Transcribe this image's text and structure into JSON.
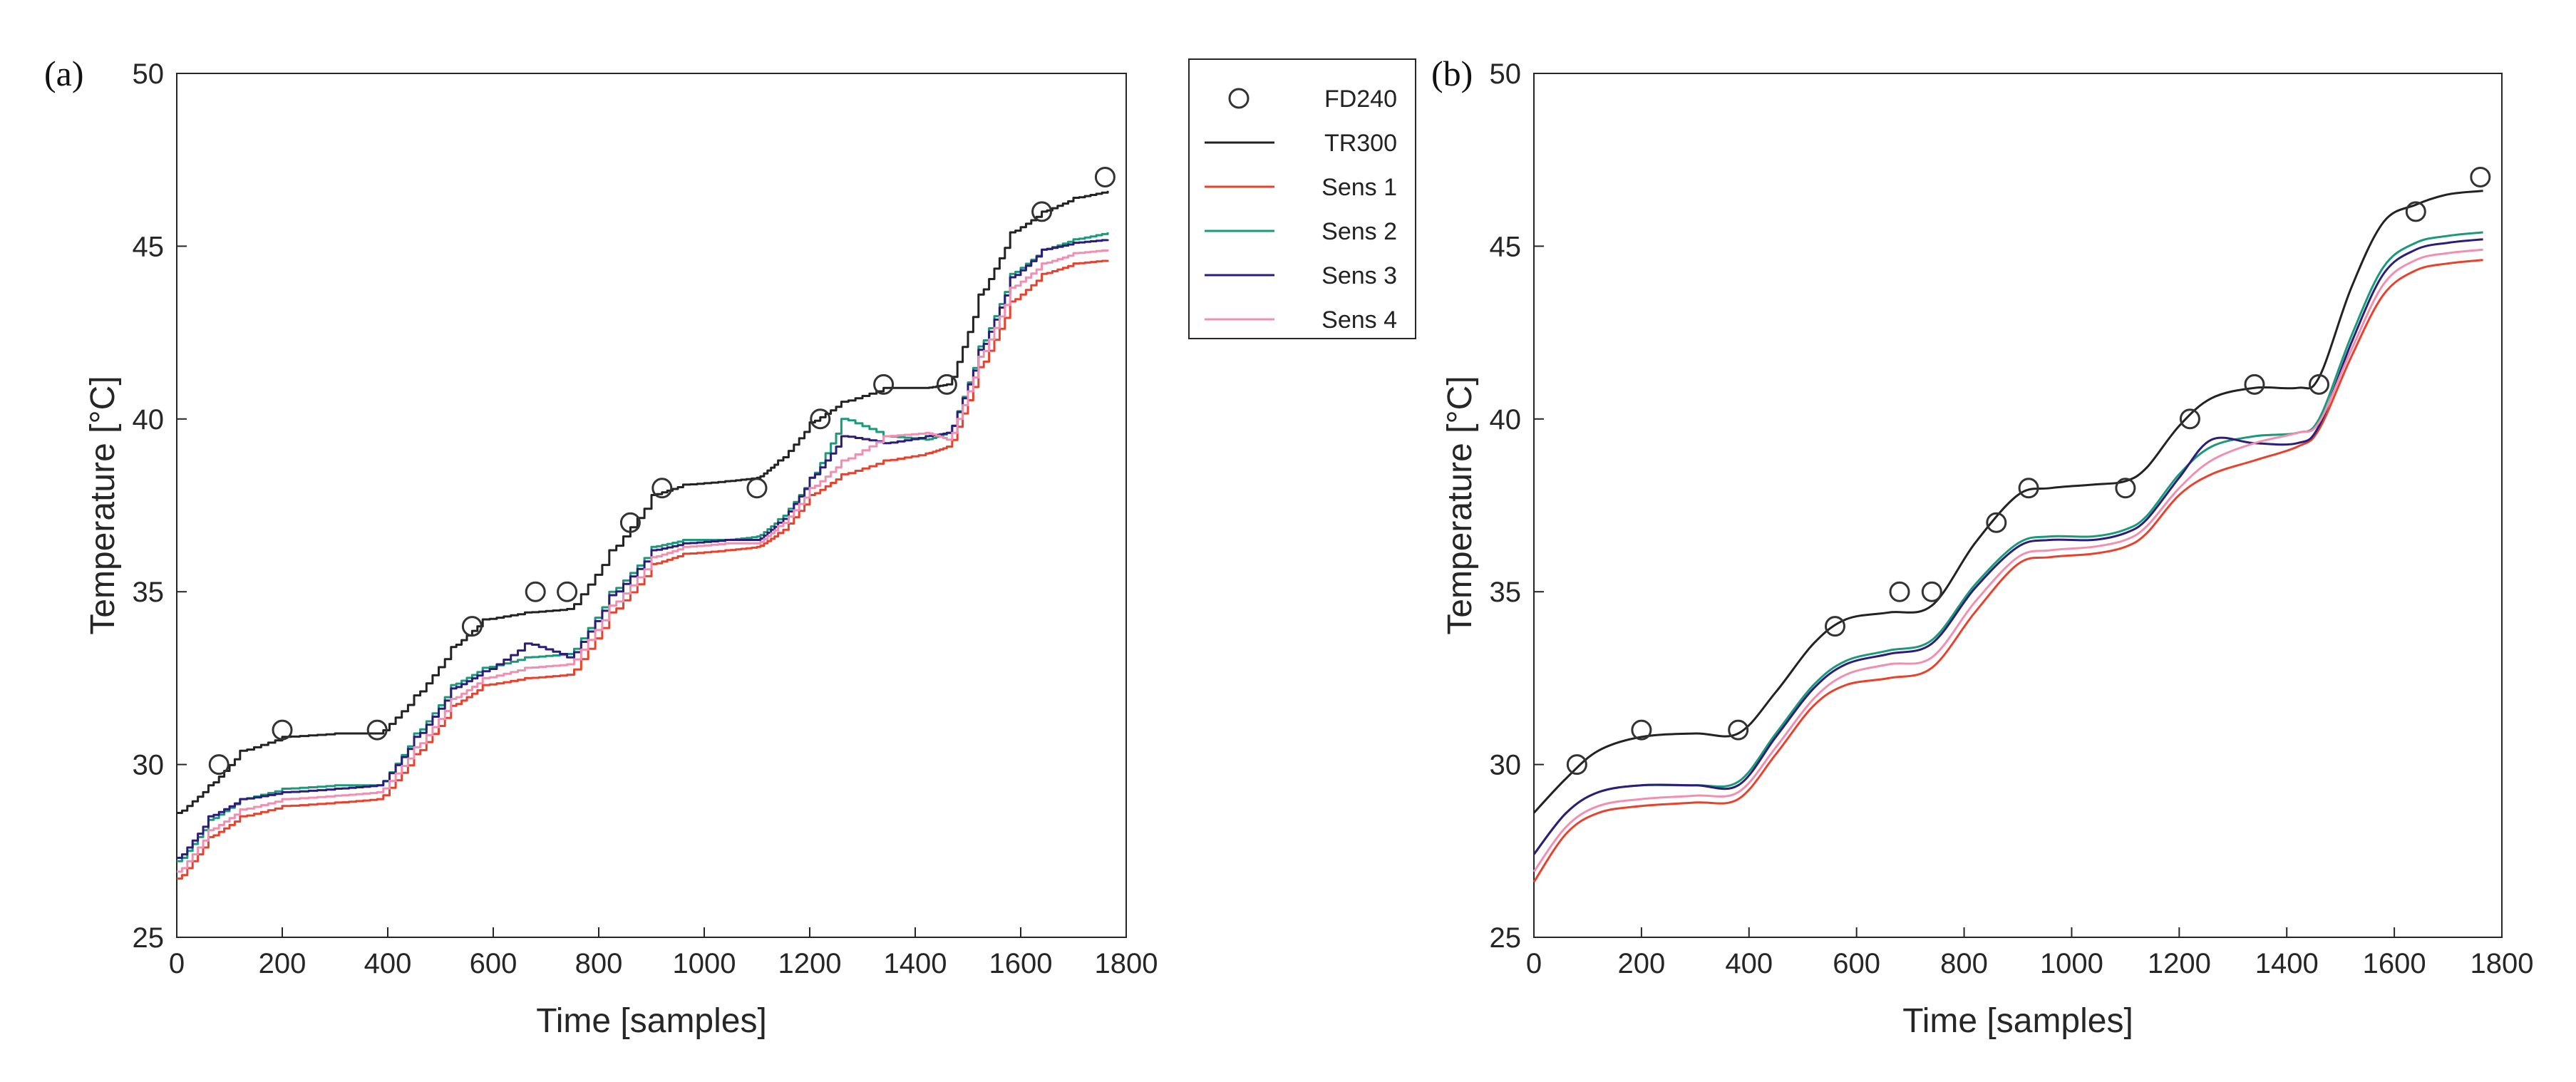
{
  "legend": {
    "entries": [
      {
        "key": "fd240",
        "label": "FD240",
        "color": "#333333",
        "marker": "circle"
      },
      {
        "key": "tr300",
        "label": "TR300",
        "color": "#222222",
        "marker": "line"
      },
      {
        "key": "sens1",
        "label": "Sens 1",
        "color": "#e8412c",
        "marker": "line"
      },
      {
        "key": "sens2",
        "label": "Sens 2",
        "color": "#1a9a7a",
        "marker": "line"
      },
      {
        "key": "sens3",
        "label": "Sens 3",
        "color": "#2c1d7a",
        "marker": "line"
      },
      {
        "key": "sens4",
        "label": "Sens 4",
        "color": "#f28fb0",
        "marker": "line"
      }
    ]
  },
  "chart_data": [
    {
      "panel_label": "(a)",
      "type": "line",
      "style": "step",
      "xlabel": "Time [samples]",
      "ylabel": "Temperature [°C]",
      "xlim": [
        0,
        1800
      ],
      "ylim": [
        25,
        50
      ],
      "xticks": [
        0,
        200,
        400,
        600,
        800,
        1000,
        1200,
        1400,
        1600,
        1800
      ],
      "yticks": [
        25,
        30,
        35,
        40,
        45,
        50
      ],
      "markers": {
        "name": "FD240",
        "x": [
          80,
          200,
          380,
          560,
          680,
          740,
          860,
          920,
          1100,
          1220,
          1340,
          1460,
          1640,
          1760
        ],
        "y": [
          30,
          31,
          31,
          34,
          35,
          35,
          37,
          38,
          38,
          40,
          41,
          41,
          46,
          47
        ]
      },
      "series": [
        {
          "name": "TR300",
          "x": [
            0,
            60,
            120,
            200,
            300,
            380,
            450,
            520,
            580,
            660,
            740,
            820,
            900,
            960,
            1040,
            1100,
            1140,
            1200,
            1260,
            1340,
            1420,
            1460,
            1520,
            1580,
            1640,
            1700,
            1765
          ],
          "y": [
            28.6,
            29.4,
            30.4,
            30.8,
            30.9,
            30.9,
            32.0,
            33.4,
            34.2,
            34.4,
            34.5,
            36.2,
            37.8,
            38.1,
            38.2,
            38.3,
            38.8,
            39.9,
            40.5,
            40.9,
            40.9,
            41.0,
            43.6,
            45.4,
            46.0,
            46.4,
            46.6
          ]
        },
        {
          "name": "Sens 1",
          "x": [
            0,
            60,
            120,
            200,
            300,
            380,
            450,
            520,
            580,
            660,
            740,
            820,
            900,
            960,
            1040,
            1100,
            1140,
            1200,
            1260,
            1340,
            1420,
            1460,
            1520,
            1580,
            1640,
            1700,
            1765
          ],
          "y": [
            26.7,
            27.9,
            28.5,
            28.8,
            28.9,
            29.0,
            30.3,
            31.7,
            32.3,
            32.5,
            32.6,
            34.4,
            35.8,
            36.1,
            36.2,
            36.3,
            36.7,
            37.8,
            38.4,
            38.8,
            39.0,
            39.2,
            41.5,
            43.4,
            44.2,
            44.5,
            44.6
          ]
        },
        {
          "name": "Sens 2",
          "x": [
            0,
            60,
            120,
            200,
            300,
            380,
            450,
            520,
            580,
            660,
            740,
            820,
            900,
            960,
            1040,
            1100,
            1140,
            1200,
            1260,
            1340,
            1420,
            1460,
            1520,
            1580,
            1640,
            1700,
            1765
          ],
          "y": [
            27.2,
            28.4,
            29.0,
            29.3,
            29.4,
            29.4,
            30.9,
            32.3,
            32.8,
            33.1,
            33.2,
            35.0,
            36.3,
            36.5,
            36.5,
            36.6,
            37.1,
            38.3,
            40.0,
            39.5,
            39.4,
            39.6,
            42.1,
            44.2,
            44.9,
            45.2,
            45.4
          ]
        },
        {
          "name": "Sens 3",
          "x": [
            0,
            60,
            120,
            200,
            300,
            380,
            450,
            520,
            580,
            660,
            740,
            820,
            900,
            960,
            1040,
            1100,
            1140,
            1200,
            1260,
            1340,
            1420,
            1460,
            1520,
            1580,
            1640,
            1700,
            1765
          ],
          "y": [
            27.3,
            28.5,
            29.0,
            29.2,
            29.3,
            29.4,
            30.8,
            32.2,
            32.7,
            33.5,
            33.1,
            34.9,
            36.2,
            36.4,
            36.5,
            36.5,
            37.0,
            38.3,
            39.5,
            39.3,
            39.5,
            39.6,
            42.0,
            44.1,
            44.9,
            45.1,
            45.2
          ]
        },
        {
          "name": "Sens 4",
          "x": [
            0,
            60,
            120,
            200,
            300,
            380,
            450,
            520,
            580,
            660,
            740,
            820,
            900,
            960,
            1040,
            1100,
            1140,
            1200,
            1260,
            1340,
            1420,
            1460,
            1520,
            1580,
            1640,
            1700,
            1765
          ],
          "y": [
            26.9,
            28.1,
            28.7,
            29.0,
            29.1,
            29.2,
            30.5,
            31.9,
            32.5,
            32.8,
            32.9,
            34.6,
            36.0,
            36.3,
            36.4,
            36.4,
            36.9,
            38.0,
            38.8,
            39.5,
            39.6,
            39.4,
            41.8,
            43.8,
            44.5,
            44.8,
            44.9
          ]
        }
      ]
    },
    {
      "panel_label": "(b)",
      "type": "line",
      "style": "smooth",
      "xlabel": "Time [samples]",
      "ylabel": "Temperature [°C]",
      "xlim": [
        0,
        1800
      ],
      "ylim": [
        25,
        50
      ],
      "xticks": [
        0,
        200,
        400,
        600,
        800,
        1000,
        1200,
        1400,
        1600,
        1800
      ],
      "yticks": [
        25,
        30,
        35,
        40,
        45,
        50
      ],
      "markers": {
        "name": "FD240",
        "x": [
          80,
          200,
          380,
          560,
          680,
          740,
          860,
          920,
          1100,
          1220,
          1340,
          1460,
          1640,
          1760
        ],
        "y": [
          30,
          31,
          31,
          34,
          35,
          35,
          37,
          38,
          38,
          40,
          41,
          41,
          46,
          47
        ]
      },
      "series": [
        {
          "name": "TR300",
          "x": [
            0,
            60,
            120,
            200,
            300,
            380,
            450,
            520,
            580,
            660,
            740,
            820,
            900,
            960,
            1040,
            1100,
            1140,
            1200,
            1260,
            1340,
            1420,
            1460,
            1520,
            1580,
            1640,
            1700,
            1765
          ],
          "y": [
            28.6,
            29.6,
            30.4,
            30.8,
            30.9,
            30.9,
            32.1,
            33.5,
            34.2,
            34.4,
            34.6,
            36.4,
            37.8,
            38.0,
            38.1,
            38.2,
            38.6,
            39.8,
            40.6,
            40.9,
            40.9,
            41.2,
            43.8,
            45.7,
            46.2,
            46.5,
            46.6
          ]
        },
        {
          "name": "Sens 1",
          "x": [
            0,
            60,
            120,
            200,
            300,
            380,
            450,
            520,
            580,
            660,
            740,
            820,
            900,
            960,
            1040,
            1100,
            1140,
            1200,
            1260,
            1340,
            1420,
            1460,
            1520,
            1580,
            1640,
            1700,
            1765
          ],
          "y": [
            26.6,
            28.0,
            28.6,
            28.8,
            28.9,
            29.0,
            30.3,
            31.7,
            32.3,
            32.5,
            32.8,
            34.4,
            35.8,
            36.0,
            36.1,
            36.3,
            36.7,
            37.8,
            38.4,
            38.8,
            39.2,
            39.7,
            41.8,
            43.6,
            44.3,
            44.5,
            44.6
          ]
        },
        {
          "name": "Sens 2",
          "x": [
            0,
            60,
            120,
            200,
            300,
            380,
            450,
            520,
            580,
            660,
            740,
            820,
            900,
            960,
            1040,
            1100,
            1140,
            1200,
            1260,
            1340,
            1420,
            1460,
            1520,
            1580,
            1640,
            1700,
            1765
          ],
          "y": [
            27.4,
            28.6,
            29.2,
            29.4,
            29.4,
            29.5,
            30.9,
            32.3,
            33.0,
            33.3,
            33.6,
            35.2,
            36.4,
            36.6,
            36.6,
            36.8,
            37.2,
            38.4,
            39.2,
            39.5,
            39.6,
            40.0,
            42.4,
            44.4,
            45.1,
            45.3,
            45.4
          ]
        },
        {
          "name": "Sens 3",
          "x": [
            0,
            60,
            120,
            200,
            300,
            380,
            450,
            520,
            580,
            660,
            740,
            820,
            900,
            960,
            1040,
            1100,
            1140,
            1200,
            1260,
            1340,
            1420,
            1460,
            1520,
            1580,
            1640,
            1700,
            1765
          ],
          "y": [
            27.4,
            28.6,
            29.2,
            29.4,
            29.4,
            29.4,
            30.8,
            32.2,
            32.9,
            33.2,
            33.5,
            35.1,
            36.3,
            36.5,
            36.5,
            36.7,
            37.1,
            38.3,
            39.4,
            39.3,
            39.3,
            39.8,
            42.2,
            44.2,
            44.9,
            45.1,
            45.2
          ]
        },
        {
          "name": "Sens 4",
          "x": [
            0,
            60,
            120,
            200,
            300,
            380,
            450,
            520,
            580,
            660,
            740,
            820,
            900,
            960,
            1040,
            1100,
            1140,
            1200,
            1260,
            1340,
            1420,
            1460,
            1520,
            1580,
            1640,
            1700,
            1765
          ],
          "y": [
            26.9,
            28.2,
            28.8,
            29.0,
            29.1,
            29.2,
            30.5,
            31.9,
            32.6,
            32.9,
            33.1,
            34.7,
            36.0,
            36.2,
            36.3,
            36.5,
            36.9,
            38.0,
            38.8,
            39.3,
            39.6,
            39.9,
            42.0,
            43.9,
            44.6,
            44.8,
            44.9
          ]
        }
      ]
    }
  ]
}
